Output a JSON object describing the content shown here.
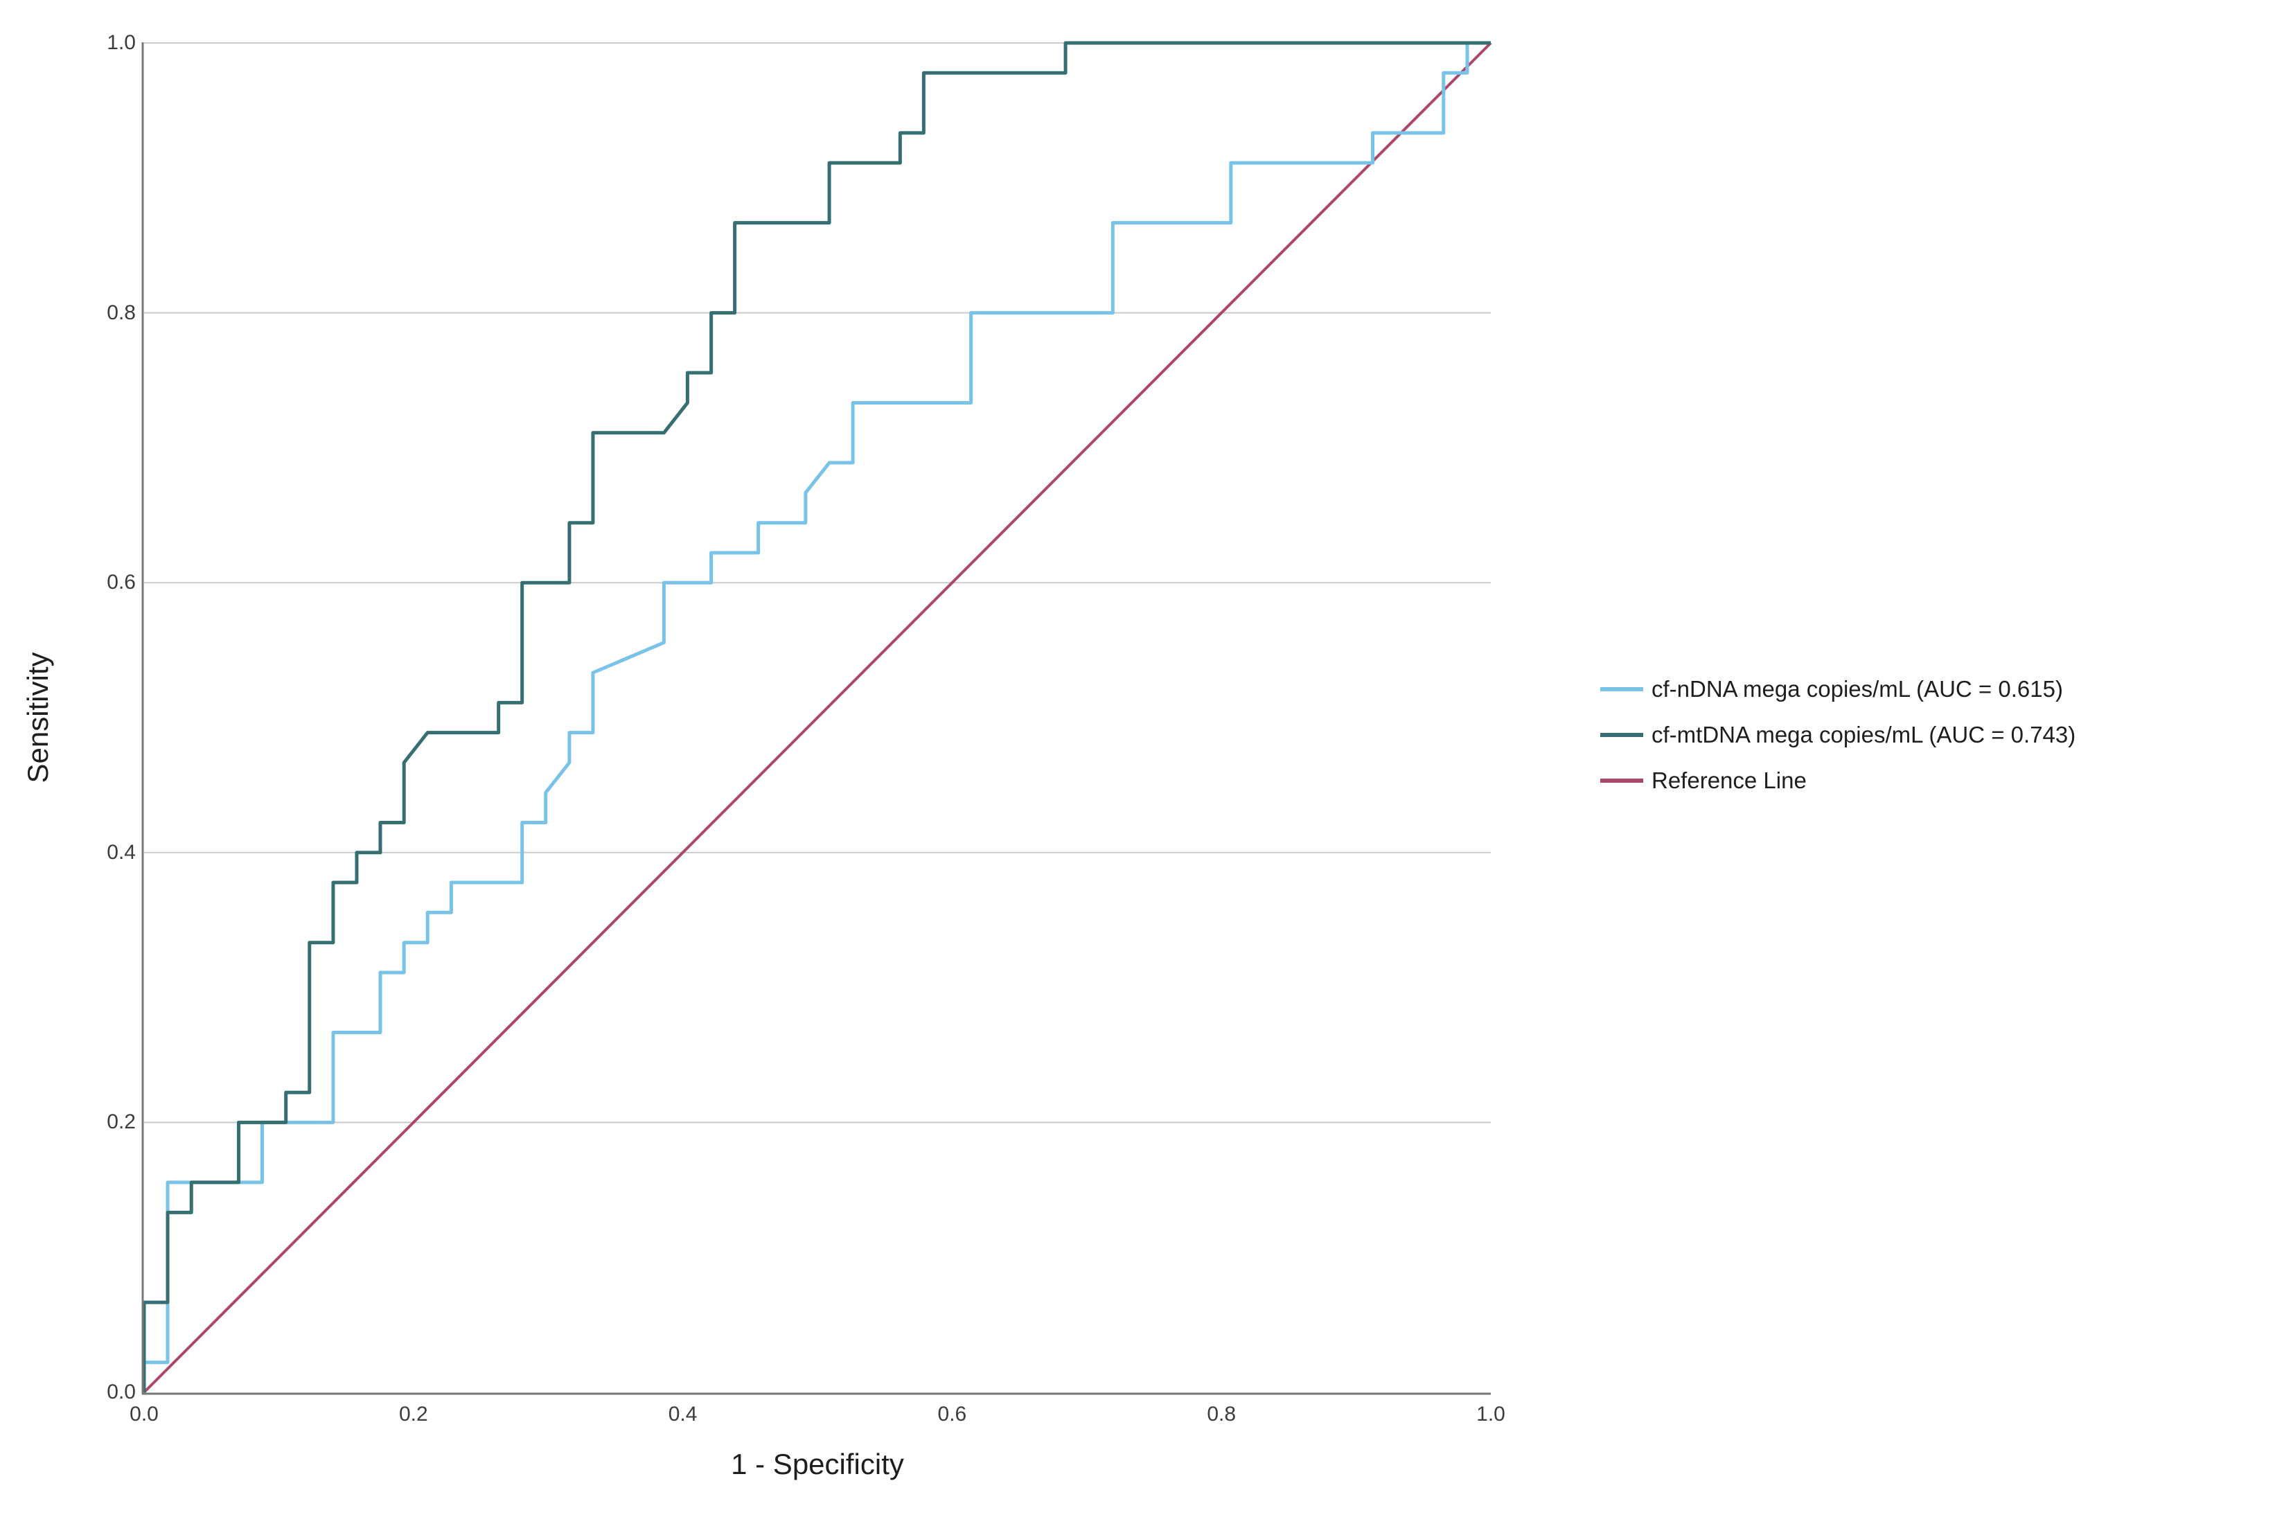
{
  "figure": {
    "background": "#FFFFFF"
  },
  "chart_data": {
    "type": "line",
    "subtype": "roc-step-curves",
    "title": "",
    "xlabel": "1 - Specificity",
    "ylabel": "Sensitivity",
    "xlim": [
      0,
      1
    ],
    "ylim": [
      0,
      1
    ],
    "x_tick_values": [
      0,
      0.2,
      0.4,
      0.6,
      0.8,
      1.0
    ],
    "x_tick_labels": [
      "0.0",
      "0.2",
      "0.4",
      "0.6",
      "0.8",
      "1.0"
    ],
    "y_tick_values": [
      0,
      0.2,
      0.4,
      0.6,
      0.8,
      1.0
    ],
    "y_tick_labels": [
      "0.0",
      "0.2",
      "0.4",
      "0.6",
      "0.8",
      "1.0"
    ],
    "grid": {
      "horizontal_at": [
        0.2,
        0.4,
        0.6,
        0.8,
        1.0
      ],
      "vertical": false,
      "color": "#CBCBCB"
    },
    "axis_color": "#777777",
    "legend_position": "right-middle",
    "series": [
      {
        "name": "cf-nDNA mega copies/mL (AUC = 0.615)",
        "auc": 0.615,
        "color": "#7AC3E8",
        "width": 5,
        "points": [
          [
            0,
            0
          ],
          [
            0,
            0.0222
          ],
          [
            0.0175,
            0.0222
          ],
          [
            0.0175,
            0.1556
          ],
          [
            0.0877,
            0.1556
          ],
          [
            0.0877,
            0.2
          ],
          [
            0.1404,
            0.2
          ],
          [
            0.1404,
            0.2667
          ],
          [
            0.1754,
            0.2667
          ],
          [
            0.1754,
            0.3111
          ],
          [
            0.193,
            0.3111
          ],
          [
            0.193,
            0.3333
          ],
          [
            0.2105,
            0.3333
          ],
          [
            0.2105,
            0.3556
          ],
          [
            0.2281,
            0.3556
          ],
          [
            0.2281,
            0.3778
          ],
          [
            0.2807,
            0.3778
          ],
          [
            0.2807,
            0.4222
          ],
          [
            0.2982,
            0.4222
          ],
          [
            0.2982,
            0.4444
          ],
          [
            0.3158,
            0.4667
          ],
          [
            0.3158,
            0.4889
          ],
          [
            0.3333,
            0.4889
          ],
          [
            0.3333,
            0.5333
          ],
          [
            0.386,
            0.5556
          ],
          [
            0.386,
            0.6
          ],
          [
            0.4211,
            0.6
          ],
          [
            0.4211,
            0.6222
          ],
          [
            0.4561,
            0.6222
          ],
          [
            0.4561,
            0.6444
          ],
          [
            0.4912,
            0.6444
          ],
          [
            0.4912,
            0.6667
          ],
          [
            0.5088,
            0.6889
          ],
          [
            0.5263,
            0.6889
          ],
          [
            0.5263,
            0.7333
          ],
          [
            0.614,
            0.7333
          ],
          [
            0.614,
            0.8
          ],
          [
            0.7193,
            0.8
          ],
          [
            0.7193,
            0.8667
          ],
          [
            0.807,
            0.8667
          ],
          [
            0.807,
            0.9111
          ],
          [
            0.9123,
            0.9111
          ],
          [
            0.9123,
            0.9333
          ],
          [
            0.9649,
            0.9333
          ],
          [
            0.9649,
            0.9778
          ],
          [
            0.9825,
            0.9778
          ],
          [
            0.9825,
            1.0
          ],
          [
            1.0,
            1.0
          ]
        ]
      },
      {
        "name": "cf-mtDNA mega copies/mL (AUC = 0.743)",
        "auc": 0.743,
        "color": "#356F72",
        "width": 5,
        "points": [
          [
            0,
            0
          ],
          [
            0,
            0.0667
          ],
          [
            0.0175,
            0.0667
          ],
          [
            0.0175,
            0.1333
          ],
          [
            0.0351,
            0.1333
          ],
          [
            0.0351,
            0.1556
          ],
          [
            0.0702,
            0.1556
          ],
          [
            0.0702,
            0.2
          ],
          [
            0.1053,
            0.2
          ],
          [
            0.1053,
            0.2222
          ],
          [
            0.1228,
            0.2222
          ],
          [
            0.1228,
            0.3333
          ],
          [
            0.1404,
            0.3333
          ],
          [
            0.1404,
            0.3778
          ],
          [
            0.1579,
            0.3778
          ],
          [
            0.1579,
            0.4
          ],
          [
            0.1754,
            0.4
          ],
          [
            0.1754,
            0.4222
          ],
          [
            0.193,
            0.4222
          ],
          [
            0.193,
            0.4667
          ],
          [
            0.2105,
            0.4889
          ],
          [
            0.2632,
            0.4889
          ],
          [
            0.2632,
            0.5111
          ],
          [
            0.2807,
            0.5111
          ],
          [
            0.2807,
            0.6
          ],
          [
            0.3158,
            0.6
          ],
          [
            0.3158,
            0.6444
          ],
          [
            0.3333,
            0.6444
          ],
          [
            0.3333,
            0.7111
          ],
          [
            0.386,
            0.7111
          ],
          [
            0.4035,
            0.7333
          ],
          [
            0.4035,
            0.7556
          ],
          [
            0.4211,
            0.7556
          ],
          [
            0.4211,
            0.8
          ],
          [
            0.4386,
            0.8
          ],
          [
            0.4386,
            0.8667
          ],
          [
            0.5088,
            0.8667
          ],
          [
            0.5088,
            0.9111
          ],
          [
            0.5614,
            0.9111
          ],
          [
            0.5614,
            0.9333
          ],
          [
            0.5789,
            0.9333
          ],
          [
            0.5789,
            0.9778
          ],
          [
            0.6842,
            0.9778
          ],
          [
            0.6842,
            1.0
          ],
          [
            1.0,
            1.0
          ]
        ]
      },
      {
        "name": "Reference Line",
        "color": "#AC466C",
        "width": 4,
        "points": [
          [
            0,
            0
          ],
          [
            1,
            1
          ]
        ]
      }
    ]
  }
}
